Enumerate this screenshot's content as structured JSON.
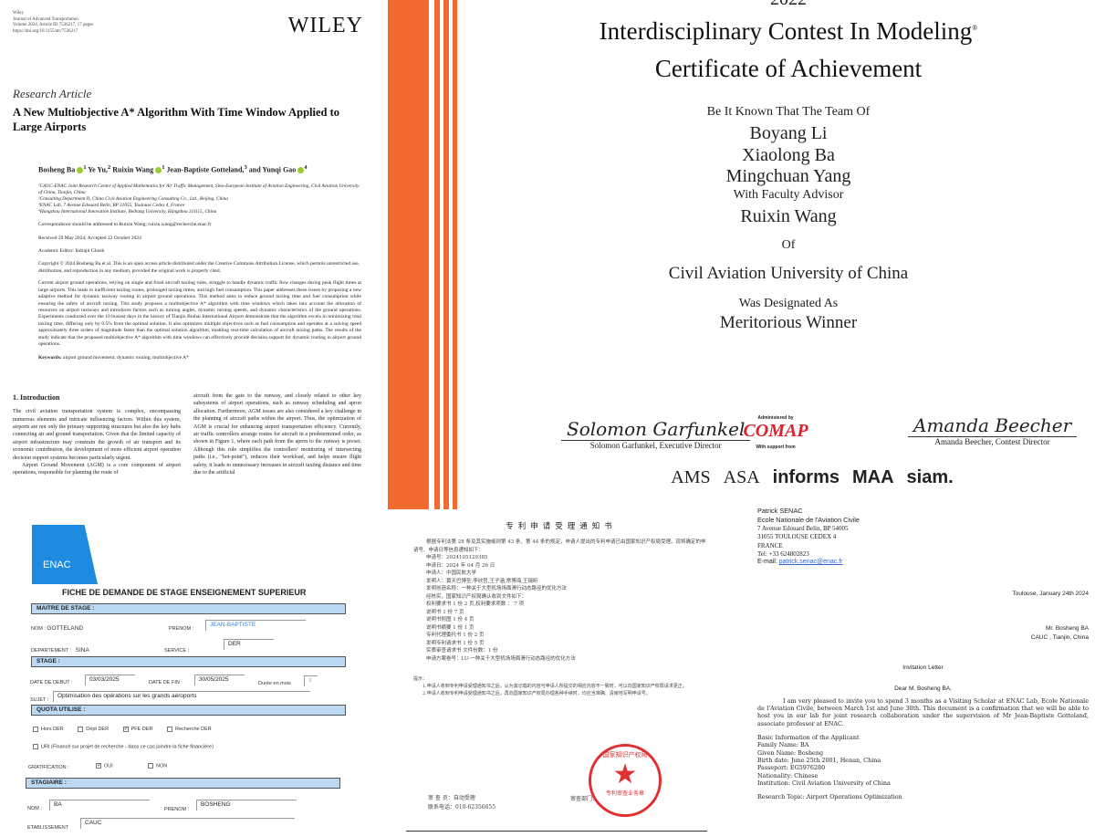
{
  "paper": {
    "meta": [
      "Wiley",
      "Journal of Advanced Transportation",
      "Volume 2024, Article ID 7536217, 17 pages",
      "https://doi.org/10.1155/atr/7536217"
    ],
    "publisher": "WILEY",
    "article_type": "Research Article",
    "title": "A New Multiobjective A* Algorithm With Time Window Applied to Large Airports",
    "authors": [
      {
        "name": "Bosheng Ba",
        "sup": "1"
      },
      {
        "name": "Ye Yu,",
        "sup": "2"
      },
      {
        "name": "Ruixin Wang",
        "sup": "1"
      },
      {
        "name": "Jean-Baptiste Gotteland,",
        "sup": "3"
      },
      {
        "name": "and Yunqi Gao",
        "sup": "4"
      }
    ],
    "affiliations": [
      "¹CAUC-ENAC Joint Research Center of Applied Mathematics for Air Traffic Management, Sino-European Institute of Aviation Engineering, Civil Aviation University of China, Tianjin, China",
      "²Consulting Department II, China Civil Aviation Engineering Consulting Co., Ltd., Beijing, China",
      "³ENAC Lab, 7 Avenue Edouard Belin, BP 31055, Toulouse Cedex 4, France",
      "⁴Hangzhou International Innovation Institute, Beihang University, Hangzhou 311115, China"
    ],
    "correspondence": "Correspondence should be addressed to Ruixin Wang; ruixin.wang@recherche.enac.fr",
    "dates": "Received 29 May 2024; Accepted 22 October 2024",
    "editor": "Academic Editor: Indrajit Ghosh",
    "copyright": "Copyright © 2024 Bosheng Ba et al. This is an open access article distributed under the Creative Commons Attribution License, which permits unrestricted use, distribution, and reproduction in any medium, provided the original work is properly cited.",
    "abstract": "Current airport ground operations, relying on single and fixed aircraft taxiing rules, struggle to handle dynamic traffic flow changes during peak flight times at large airports. This leads to inefficient taxiing routes, prolonged taxiing times, and high fuel consumption. This paper addresses these issues by proposing a new adaptive method for dynamic taxiway routing in airport ground operations. This method aims to reduce ground taxiing time and fuel consumption while ensuring the safety of aircraft taxiing. This study proposes a multiobjective A* algorithm with time windows which takes into account the allocation of resources on airport taxiways and introduces factors such as turning angles, dynamic turning speeds, and dynamic characteristics of the ground operations. Experiments conducted over the 10 busiest days in the history of Tianjin Binhai International Airport demonstrate that the algorithm excels in minimizing total taxiing time, differing only by 0.5% from the optimal solution. It also optimizes multiple objectives such as fuel consumption and operates at a solving speed approximately three orders of magnitude faster than the optimal solution algorithm, enabling real-time calculation of aircraft taxiing paths. The results of the study indicate that the proposed multiobjective A* algorithm with time windows can effectively provide decision support for dynamic routing in airport ground operations.",
    "keywords_label": "Keywords:",
    "keywords": "airport ground movement; dynamic routing; multiobjective A*",
    "intro_heading": "1. Introduction",
    "intro_col1": "The civil aviation transportation system is complex, encompassing numerous elements and intricate influencing factors. Within this system, airports are not only the primary supporting structures but also the key hubs connecting air and ground transportation. Given that the limited capacity of airport infrastructure may constrain the growth of air transport and its economic contribution, the development of more efficient airport operation decision support systems becomes particularly urgent.",
    "intro_col1b": "Airport Ground Movement (AGM) is a core component of airport operations, responsible for planning the route of",
    "intro_col2": "aircraft from the gate to the runway, and closely related to other key subsystems of airport operations, such as runway scheduling and apron allocation. Furthermore, AGM issues are also considered a key challenge in the planning of aircraft paths within the airport. Thus, the optimization of AGM is crucial for enhancing airport transportation efficiency. Currently, air traffic controllers arrange routes for aircraft in a predetermined order, as shown in Figure 1, where each path from the apron to the runway is preset. Although this rule simplifies the controllers' monitoring of intersecting paths (i.e., \"hot-point\"), reduces their workload, and helps ensure flight safety, it leads to unnecessary increases in aircraft taxiing distance and time due to the artificial"
  },
  "certificate": {
    "year": "2022",
    "contest": "Interdisciplinary Contest In Modeling",
    "reg": "®",
    "title": "Certificate of Achievement",
    "intro": "Be It Known That The Team Of",
    "members": [
      "Boyang Li",
      "Xiaolong Ba",
      "Mingchuan Yang"
    ],
    "advisor_label": "With Faculty Advisor",
    "advisor": "Ruixin Wang",
    "of": "Of",
    "institution": "Civil Aviation University of China",
    "designated": "Was Designated As",
    "award": "Meritorious Winner",
    "sig_left_script": "Solomon Garfunkel",
    "sig_left": "Solomon Garfunkel, Executive Director",
    "sig_right_script": "Amanda Beecher",
    "sig_right": "Amanda Beecher, Contest Director",
    "administered": "Administered by",
    "comap": "COMAP",
    "support": "With support from",
    "logos": [
      "AMS",
      "ASA",
      "informs",
      "MAA",
      "siam."
    ],
    "accent": "#f26a30"
  },
  "form": {
    "logo": "ENAC",
    "title": "FICHE DE DEMANDE DE STAGE ENSEIGNEMENT SUPERIEUR",
    "s1": "MAITRE DE STAGE :",
    "nom_l": "NOM :",
    "nom": "GOTTELAND",
    "prenom_l": "PRENOM :",
    "prenom": "JEAN-BAPTISTE",
    "dept_l": "DEPARTEMENT :",
    "dept": "SINA",
    "service_l": "SERVICE :",
    "service": "DER",
    "s2": "STAGE :",
    "debut_l": "DATE DE DEBUT :",
    "debut": "03/03/2025",
    "fin_l": "DATE DE FIN :",
    "fin": "30/05/2025",
    "duree_l": "Durée en mois",
    "duree": "3",
    "sujet_l": "SUJET :",
    "sujet": "Optimisation des opérations sur les grands aéroports",
    "s3": "QUOTA UTILISE :",
    "quota": [
      {
        "label": "Hors DER",
        "checked": false
      },
      {
        "label": "Dépt DER",
        "checked": false
      },
      {
        "label": "PFE DER",
        "checked": true
      },
      {
        "label": "Recherche DER",
        "checked": false
      }
    ],
    "uri": "URI (Financé sur projet de recherche - dans ce cas joindre la fiche financière)",
    "grat_l": "GRATIFICATION :",
    "oui": "OUI",
    "non": "NON",
    "grat_oui": true,
    "s4": "STAGIAIRE :",
    "snom": "BA",
    "sprenom": "BOSHENG",
    "etab_l": "ETABLISSEMENT",
    "etab": "CAUC",
    "header_color": "#bcd9f4",
    "logo_color": "#1d8ce0"
  },
  "patent": {
    "title": "专利申请受理通知书",
    "para": "根据专利法第 28 条及其实施细则第 43 条、第 44 条的规定，申请人提出的专利申请已由国家知识产权局受理。现将确定的申请号、申请日等信息通知如下：",
    "lines": [
      "申请号：2024105129385",
      "申请日：2024 年 04 月 26 日",
      "申请人：中国民航大学",
      "发明人：黄天巴博圣,李欣哲,王子涵,常博海,王瑞昕",
      "发明创造名称：一种关于大型机场场面滑行动态路径的优化方法",
      "经核实，国家知识产权局确认收到文件如下：",
      "权利要求书 1 份 2 页,权利要求项数 ： 7 项",
      "说明书 1 份 7 页",
      "说明书附图 1 份 4 页",
      "说明书摘要 1 份 1 页",
      "专利代理委托书 1 份 2 页",
      "发明专利请求书 1 份 5 页",
      "实质审查请求书 文件份数：1 份",
      "申请方案卷号：LU-一种关于大型机场场面滑行动态路径的优化方法"
    ],
    "tips_label": "提示：",
    "tips": [
      "1.申请人收到专利申请受理通知书之后，认为其记载的内容与申请人所提交的相应内容不一致时，可以向国家知识产权局请求更正。",
      "2.申请人收到专利申请受理通知书之后，再向国家知识产权局办理各种手续时，均应当准确、清晰地写明申请号。"
    ],
    "examiner": "审 查 员：自动受理",
    "phone": "联系电话：010-62356655",
    "dept": "审查部门：",
    "stamp_ring": "国家知识产权局",
    "stamp_bottom": "专利审查业务章",
    "stamp_color": "#e23030"
  },
  "letter": {
    "sender": [
      "Patrick SENAC",
      "Ecole Nationale de l'Aviation Civile"
    ],
    "address": [
      "7 Avenue Edouard Belin, BP 54005",
      "31055 TOULOUSE CEDEX 4",
      "FRANCE",
      "Tel: +33 624802823"
    ],
    "email_label": "E-mail:",
    "email": "patrick.senac@enac.fr",
    "date": "Toulouse, January 24th 2024",
    "recipient": [
      "Mr. Bosheng BA",
      "CAUC , Tianjin, China"
    ],
    "subject": "Invitation Letter",
    "greeting": "Dear M. Bosheng BA,",
    "body": "I am very pleased to invite you to spend 3 months as a Visiting Scholar at ENAC Lab, Ecole Nationale de l'Aviation Civile, between March 1st and June 30th. This document is a confirmation that we will be able to host you in our lab for joint research collaboration under the supervision of Mr Jean-Baptiste Gotteland, associate professor at ENAC.",
    "info": [
      "Basic Information of the Applicant",
      "Family Name: BA",
      "Given Name: Bosheng",
      "Birth date: June 25th 2001, Henan, China",
      "Passeport: EG5976280",
      "Nationality: Chinese",
      "Institution: Civil Aviation University of China"
    ],
    "topic": "Research Topic: Airport Operations Optimization"
  }
}
